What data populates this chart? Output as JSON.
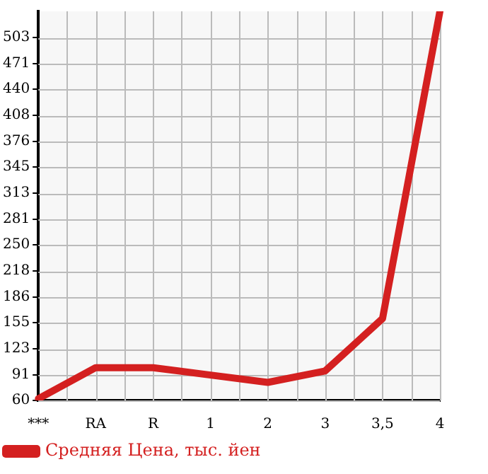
{
  "chart_data": {
    "type": "line",
    "categories": [
      "***",
      "RA",
      "R",
      "1",
      "2",
      "3",
      "3,5",
      "4"
    ],
    "series": [
      {
        "name": "Средняя Цена, тыс. йен",
        "color": "#d42020",
        "values": [
          62,
          100,
          100,
          91,
          82,
          96,
          160,
          535
        ]
      }
    ],
    "ylim": [
      60,
      535
    ],
    "yticks": [
      60,
      91,
      123,
      155,
      186,
      218,
      250,
      281,
      313,
      345,
      376,
      408,
      440,
      471,
      503
    ],
    "grid": true,
    "legend": "bottom",
    "marker": "none",
    "line_style": "solid"
  }
}
